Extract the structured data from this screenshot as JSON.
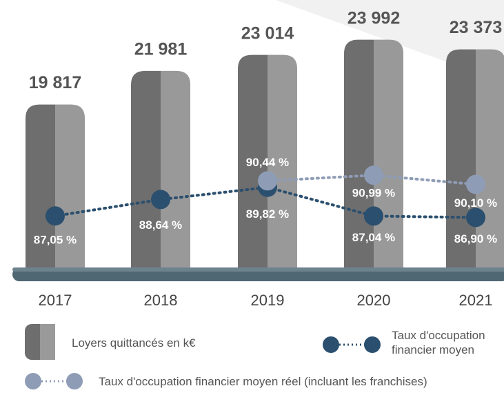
{
  "chart_data": {
    "type": "bar",
    "categories": [
      "2017",
      "2018",
      "2019",
      "2020",
      "2021"
    ],
    "ylim": [
      9000,
      25000
    ],
    "y2lim": [
      81.6,
      105.6
    ],
    "series": [
      {
        "name": "Loyers quittancés en k€",
        "type": "bar",
        "color": "#6e6e6e",
        "values": [
          19817,
          21981,
          23014,
          23992,
          23373
        ],
        "value_labels": [
          "19 817",
          "21 981",
          "23 014",
          "23 992",
          "23 373"
        ]
      },
      {
        "name": "Taux d'occupation financier moyen",
        "type": "line",
        "axis": "y2",
        "color": "#2b4f6e",
        "values": [
          87.05,
          88.64,
          89.82,
          87.04,
          86.9
        ],
        "value_labels": [
          "87,05 %",
          "88,64 %",
          "89,82 %",
          "87,04 %",
          "86,90 %"
        ]
      },
      {
        "name": "Taux d'occupation financier moyen réel (incluant les franchises)",
        "type": "line",
        "axis": "y2",
        "color": "#8e9cb6",
        "values": [
          null,
          null,
          90.44,
          90.99,
          90.1
        ],
        "value_labels": [
          null,
          null,
          "90,44 %",
          "90,99 %",
          "90,10 %"
        ]
      }
    ]
  }
}
